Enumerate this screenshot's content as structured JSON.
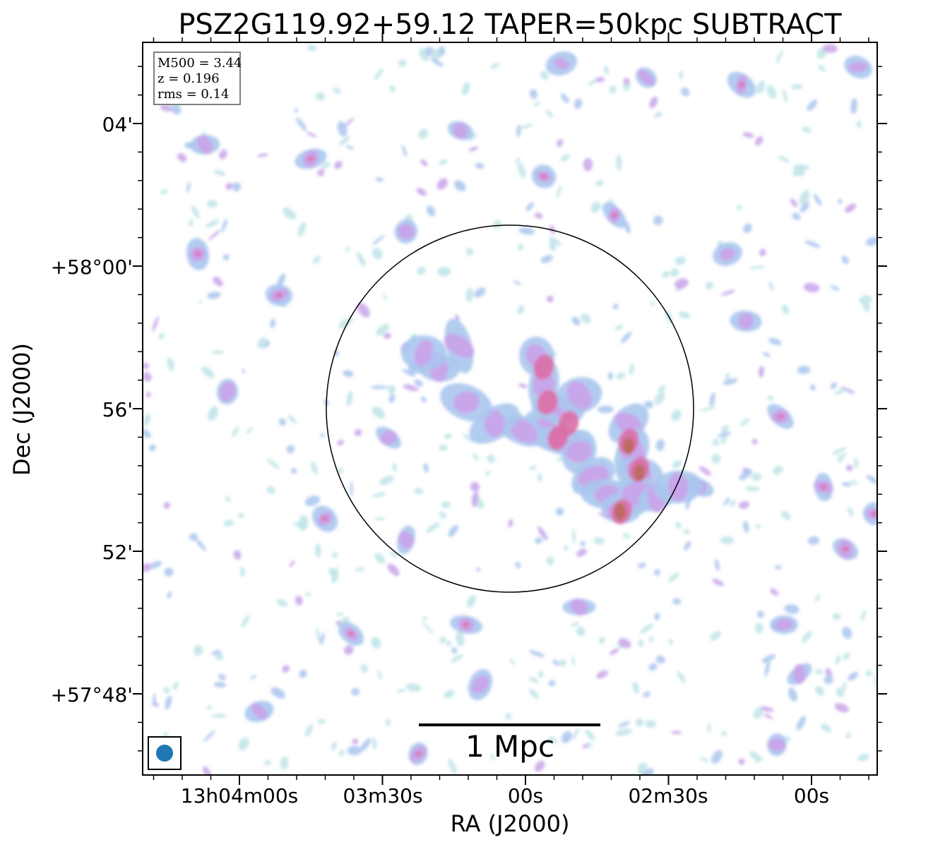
{
  "title": "PSZ2G119.92+59.12 TAPER=50kpc SUBTRACT",
  "info_box": {
    "lines": [
      "M500 = 3.44",
      "z = 0.196",
      "rms = 0.14"
    ]
  },
  "axes": {
    "xlabel": "RA (J2000)",
    "ylabel": "Dec (J2000)",
    "x_ticks": [
      "13h04m00s",
      "03m30s",
      "00s",
      "02m30s",
      "00s"
    ],
    "y_ticks": [
      "04'",
      "+58°00'",
      "56'",
      "52'",
      "+57°48'"
    ]
  },
  "scale_bar": {
    "label": "1 Mpc"
  },
  "colors": {
    "frame": "#000000",
    "beam": "#1f77b4",
    "info_border": "#808080",
    "emission_faint": "#bfe4e8",
    "emission_low": "#aac6ee",
    "emission_mid": "#c9a4ea",
    "emission_high": "#dc6ea6",
    "emission_peak": "#b86a58"
  },
  "overlays": {
    "circle": "r500 aperture",
    "beam": "restoring beam",
    "colormap": "light blue to purple to red"
  }
}
